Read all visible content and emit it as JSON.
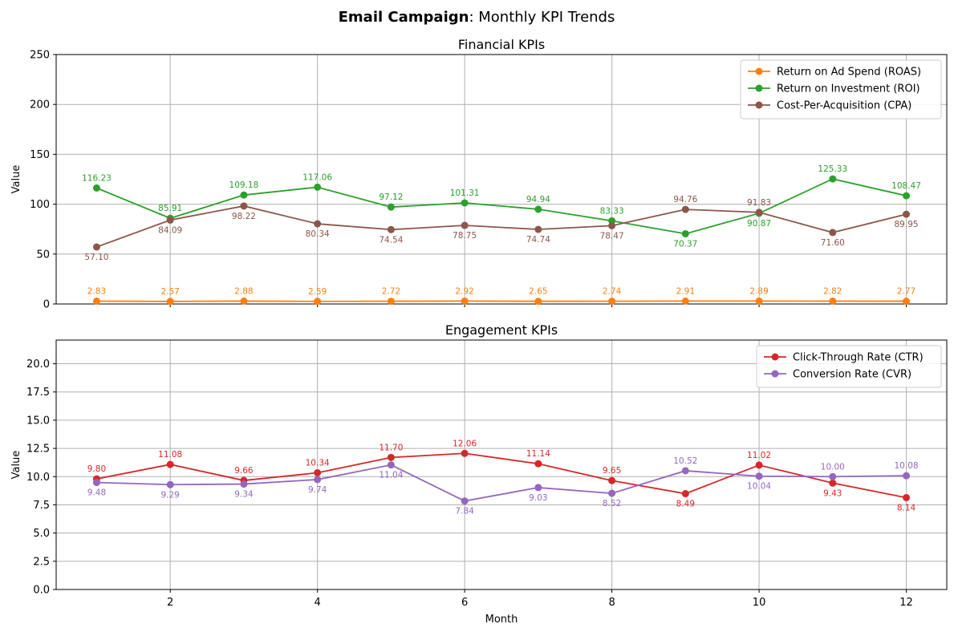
{
  "figure": {
    "title_bold": "Email Campaign",
    "title_rest": ": Monthly KPI Trends",
    "xlabel": "Month"
  },
  "chart_data": [
    {
      "type": "line",
      "title": "Financial KPIs",
      "xlabel": "",
      "ylabel": "Value",
      "xlim": [
        0.45,
        12.55
      ],
      "ylim": [
        0,
        250
      ],
      "xticks": [
        2,
        4,
        6,
        8,
        10,
        12
      ],
      "yticks": [
        0,
        50,
        100,
        150,
        200,
        250
      ],
      "grid": true,
      "legend_position": "top-right",
      "x": [
        1,
        2,
        3,
        4,
        5,
        6,
        7,
        8,
        9,
        10,
        11,
        12
      ],
      "series": [
        {
          "name": "Return on Ad Spend (ROAS)",
          "color": "#ff7f0e",
          "values": [
            2.83,
            2.57,
            2.88,
            2.59,
            2.72,
            2.92,
            2.65,
            2.74,
            2.91,
            2.89,
            2.82,
            2.77
          ],
          "labels": [
            "2.83",
            "2.57",
            "2.88",
            "2.59",
            "2.72",
            "2.92",
            "2.65",
            "2.74",
            "2.91",
            "2.89",
            "2.82",
            "2.77"
          ],
          "label_pos": [
            "above",
            "above",
            "above",
            "above",
            "above",
            "above",
            "above",
            "above",
            "above",
            "above",
            "above",
            "above"
          ]
        },
        {
          "name": "Return on Investment (ROI)",
          "color": "#2ca02c",
          "values": [
            116.23,
            85.91,
            109.18,
            117.06,
            97.12,
            101.31,
            94.94,
            83.33,
            70.37,
            90.87,
            125.33,
            108.47
          ],
          "labels": [
            "116.23",
            "85.91",
            "109.18",
            "117.06",
            "97.12",
            "101.31",
            "94.94",
            "83.33",
            "70.37",
            "90.87",
            "125.33",
            "108.47"
          ],
          "label_pos": [
            "above",
            "above",
            "above",
            "above",
            "above",
            "above",
            "above",
            "above",
            "below",
            "below",
            "above",
            "above"
          ]
        },
        {
          "name": "Cost-Per-Acquisition (CPA)",
          "color": "#8c564b",
          "values": [
            57.1,
            84.09,
            98.22,
            80.34,
            74.54,
            78.75,
            74.74,
            78.47,
            94.76,
            91.83,
            71.6,
            89.95
          ],
          "labels": [
            "57.10",
            "84.09",
            "98.22",
            "80.34",
            "74.54",
            "78.75",
            "74.74",
            "78.47",
            "94.76",
            "91.83",
            "71.60",
            "89.95"
          ],
          "label_pos": [
            "below",
            "below",
            "below",
            "below",
            "below",
            "below",
            "below",
            "below",
            "above",
            "above",
            "below",
            "below"
          ]
        }
      ]
    },
    {
      "type": "line",
      "title": "Engagement KPIs",
      "xlabel": "Month",
      "ylabel": "Value",
      "xlim": [
        0.45,
        12.55
      ],
      "ylim": [
        0,
        22.1
      ],
      "xticks": [
        2,
        4,
        6,
        8,
        10,
        12
      ],
      "yticks": [
        0.0,
        2.5,
        5.0,
        7.5,
        10.0,
        12.5,
        15.0,
        17.5,
        20.0
      ],
      "ytick_labels": [
        "0.0",
        "2.5",
        "5.0",
        "7.5",
        "10.0",
        "12.5",
        "15.0",
        "17.5",
        "20.0"
      ],
      "grid": true,
      "legend_position": "top-right",
      "x": [
        1,
        2,
        3,
        4,
        5,
        6,
        7,
        8,
        9,
        10,
        11,
        12
      ],
      "series": [
        {
          "name": "Click-Through Rate (CTR)",
          "color": "#d62728",
          "values": [
            9.8,
            11.08,
            9.66,
            10.34,
            11.7,
            12.06,
            11.14,
            9.65,
            8.49,
            11.02,
            9.43,
            8.14
          ],
          "labels": [
            "9.80",
            "11.08",
            "9.66",
            "10.34",
            "11.70",
            "12.06",
            "11.14",
            "9.65",
            "8.49",
            "11.02",
            "9.43",
            "8.14"
          ],
          "label_pos": [
            "above",
            "above",
            "above",
            "above",
            "above",
            "above",
            "above",
            "above",
            "below",
            "above",
            "below",
            "below"
          ]
        },
        {
          "name": "Conversion Rate (CVR)",
          "color": "#9467bd",
          "values": [
            9.48,
            9.29,
            9.34,
            9.74,
            11.04,
            7.84,
            9.03,
            8.52,
            10.52,
            10.04,
            10.0,
            10.08
          ],
          "labels": [
            "9.48",
            "9.29",
            "9.34",
            "9.74",
            "11.04",
            "7.84",
            "9.03",
            "8.52",
            "10.52",
            "10.04",
            "10.00",
            "10.08"
          ],
          "label_pos": [
            "below",
            "below",
            "below",
            "below",
            "below",
            "below",
            "below",
            "below",
            "above",
            "below",
            "above",
            "above"
          ]
        }
      ]
    }
  ]
}
